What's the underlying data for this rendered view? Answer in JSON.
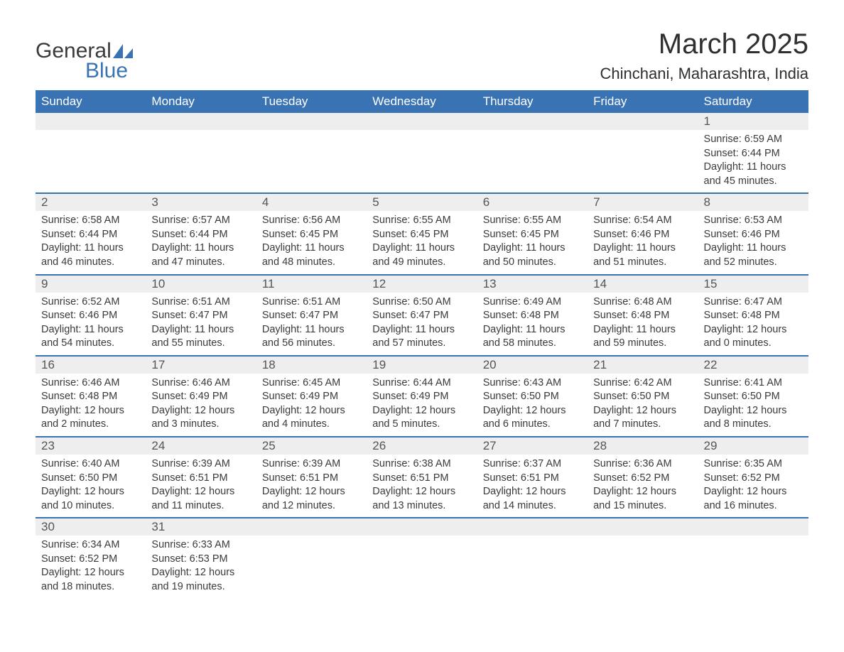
{
  "logo": {
    "text_general": "General",
    "text_blue": "Blue",
    "sail_color": "#3a73b4"
  },
  "title": "March 2025",
  "location": "Chinchani, Maharashtra, India",
  "colors": {
    "header_bg": "#3a73b4",
    "header_fg": "#ffffff",
    "daynum_bg": "#eeeeee",
    "row_divider": "#3a73b4",
    "text": "#3a3a3a"
  },
  "weekdays": [
    "Sunday",
    "Monday",
    "Tuesday",
    "Wednesday",
    "Thursday",
    "Friday",
    "Saturday"
  ],
  "first_weekday_index": 6,
  "days": [
    {
      "n": 1,
      "sunrise": "6:59 AM",
      "sunset": "6:44 PM",
      "daylight": "11 hours and 45 minutes."
    },
    {
      "n": 2,
      "sunrise": "6:58 AM",
      "sunset": "6:44 PM",
      "daylight": "11 hours and 46 minutes."
    },
    {
      "n": 3,
      "sunrise": "6:57 AM",
      "sunset": "6:44 PM",
      "daylight": "11 hours and 47 minutes."
    },
    {
      "n": 4,
      "sunrise": "6:56 AM",
      "sunset": "6:45 PM",
      "daylight": "11 hours and 48 minutes."
    },
    {
      "n": 5,
      "sunrise": "6:55 AM",
      "sunset": "6:45 PM",
      "daylight": "11 hours and 49 minutes."
    },
    {
      "n": 6,
      "sunrise": "6:55 AM",
      "sunset": "6:45 PM",
      "daylight": "11 hours and 50 minutes."
    },
    {
      "n": 7,
      "sunrise": "6:54 AM",
      "sunset": "6:46 PM",
      "daylight": "11 hours and 51 minutes."
    },
    {
      "n": 8,
      "sunrise": "6:53 AM",
      "sunset": "6:46 PM",
      "daylight": "11 hours and 52 minutes."
    },
    {
      "n": 9,
      "sunrise": "6:52 AM",
      "sunset": "6:46 PM",
      "daylight": "11 hours and 54 minutes."
    },
    {
      "n": 10,
      "sunrise": "6:51 AM",
      "sunset": "6:47 PM",
      "daylight": "11 hours and 55 minutes."
    },
    {
      "n": 11,
      "sunrise": "6:51 AM",
      "sunset": "6:47 PM",
      "daylight": "11 hours and 56 minutes."
    },
    {
      "n": 12,
      "sunrise": "6:50 AM",
      "sunset": "6:47 PM",
      "daylight": "11 hours and 57 minutes."
    },
    {
      "n": 13,
      "sunrise": "6:49 AM",
      "sunset": "6:48 PM",
      "daylight": "11 hours and 58 minutes."
    },
    {
      "n": 14,
      "sunrise": "6:48 AM",
      "sunset": "6:48 PM",
      "daylight": "11 hours and 59 minutes."
    },
    {
      "n": 15,
      "sunrise": "6:47 AM",
      "sunset": "6:48 PM",
      "daylight": "12 hours and 0 minutes."
    },
    {
      "n": 16,
      "sunrise": "6:46 AM",
      "sunset": "6:48 PM",
      "daylight": "12 hours and 2 minutes."
    },
    {
      "n": 17,
      "sunrise": "6:46 AM",
      "sunset": "6:49 PM",
      "daylight": "12 hours and 3 minutes."
    },
    {
      "n": 18,
      "sunrise": "6:45 AM",
      "sunset": "6:49 PM",
      "daylight": "12 hours and 4 minutes."
    },
    {
      "n": 19,
      "sunrise": "6:44 AM",
      "sunset": "6:49 PM",
      "daylight": "12 hours and 5 minutes."
    },
    {
      "n": 20,
      "sunrise": "6:43 AM",
      "sunset": "6:50 PM",
      "daylight": "12 hours and 6 minutes."
    },
    {
      "n": 21,
      "sunrise": "6:42 AM",
      "sunset": "6:50 PM",
      "daylight": "12 hours and 7 minutes."
    },
    {
      "n": 22,
      "sunrise": "6:41 AM",
      "sunset": "6:50 PM",
      "daylight": "12 hours and 8 minutes."
    },
    {
      "n": 23,
      "sunrise": "6:40 AM",
      "sunset": "6:50 PM",
      "daylight": "12 hours and 10 minutes."
    },
    {
      "n": 24,
      "sunrise": "6:39 AM",
      "sunset": "6:51 PM",
      "daylight": "12 hours and 11 minutes."
    },
    {
      "n": 25,
      "sunrise": "6:39 AM",
      "sunset": "6:51 PM",
      "daylight": "12 hours and 12 minutes."
    },
    {
      "n": 26,
      "sunrise": "6:38 AM",
      "sunset": "6:51 PM",
      "daylight": "12 hours and 13 minutes."
    },
    {
      "n": 27,
      "sunrise": "6:37 AM",
      "sunset": "6:51 PM",
      "daylight": "12 hours and 14 minutes."
    },
    {
      "n": 28,
      "sunrise": "6:36 AM",
      "sunset": "6:52 PM",
      "daylight": "12 hours and 15 minutes."
    },
    {
      "n": 29,
      "sunrise": "6:35 AM",
      "sunset": "6:52 PM",
      "daylight": "12 hours and 16 minutes."
    },
    {
      "n": 30,
      "sunrise": "6:34 AM",
      "sunset": "6:52 PM",
      "daylight": "12 hours and 18 minutes."
    },
    {
      "n": 31,
      "sunrise": "6:33 AM",
      "sunset": "6:53 PM",
      "daylight": "12 hours and 19 minutes."
    }
  ],
  "labels": {
    "sunrise": "Sunrise:",
    "sunset": "Sunset:",
    "daylight": "Daylight:"
  }
}
